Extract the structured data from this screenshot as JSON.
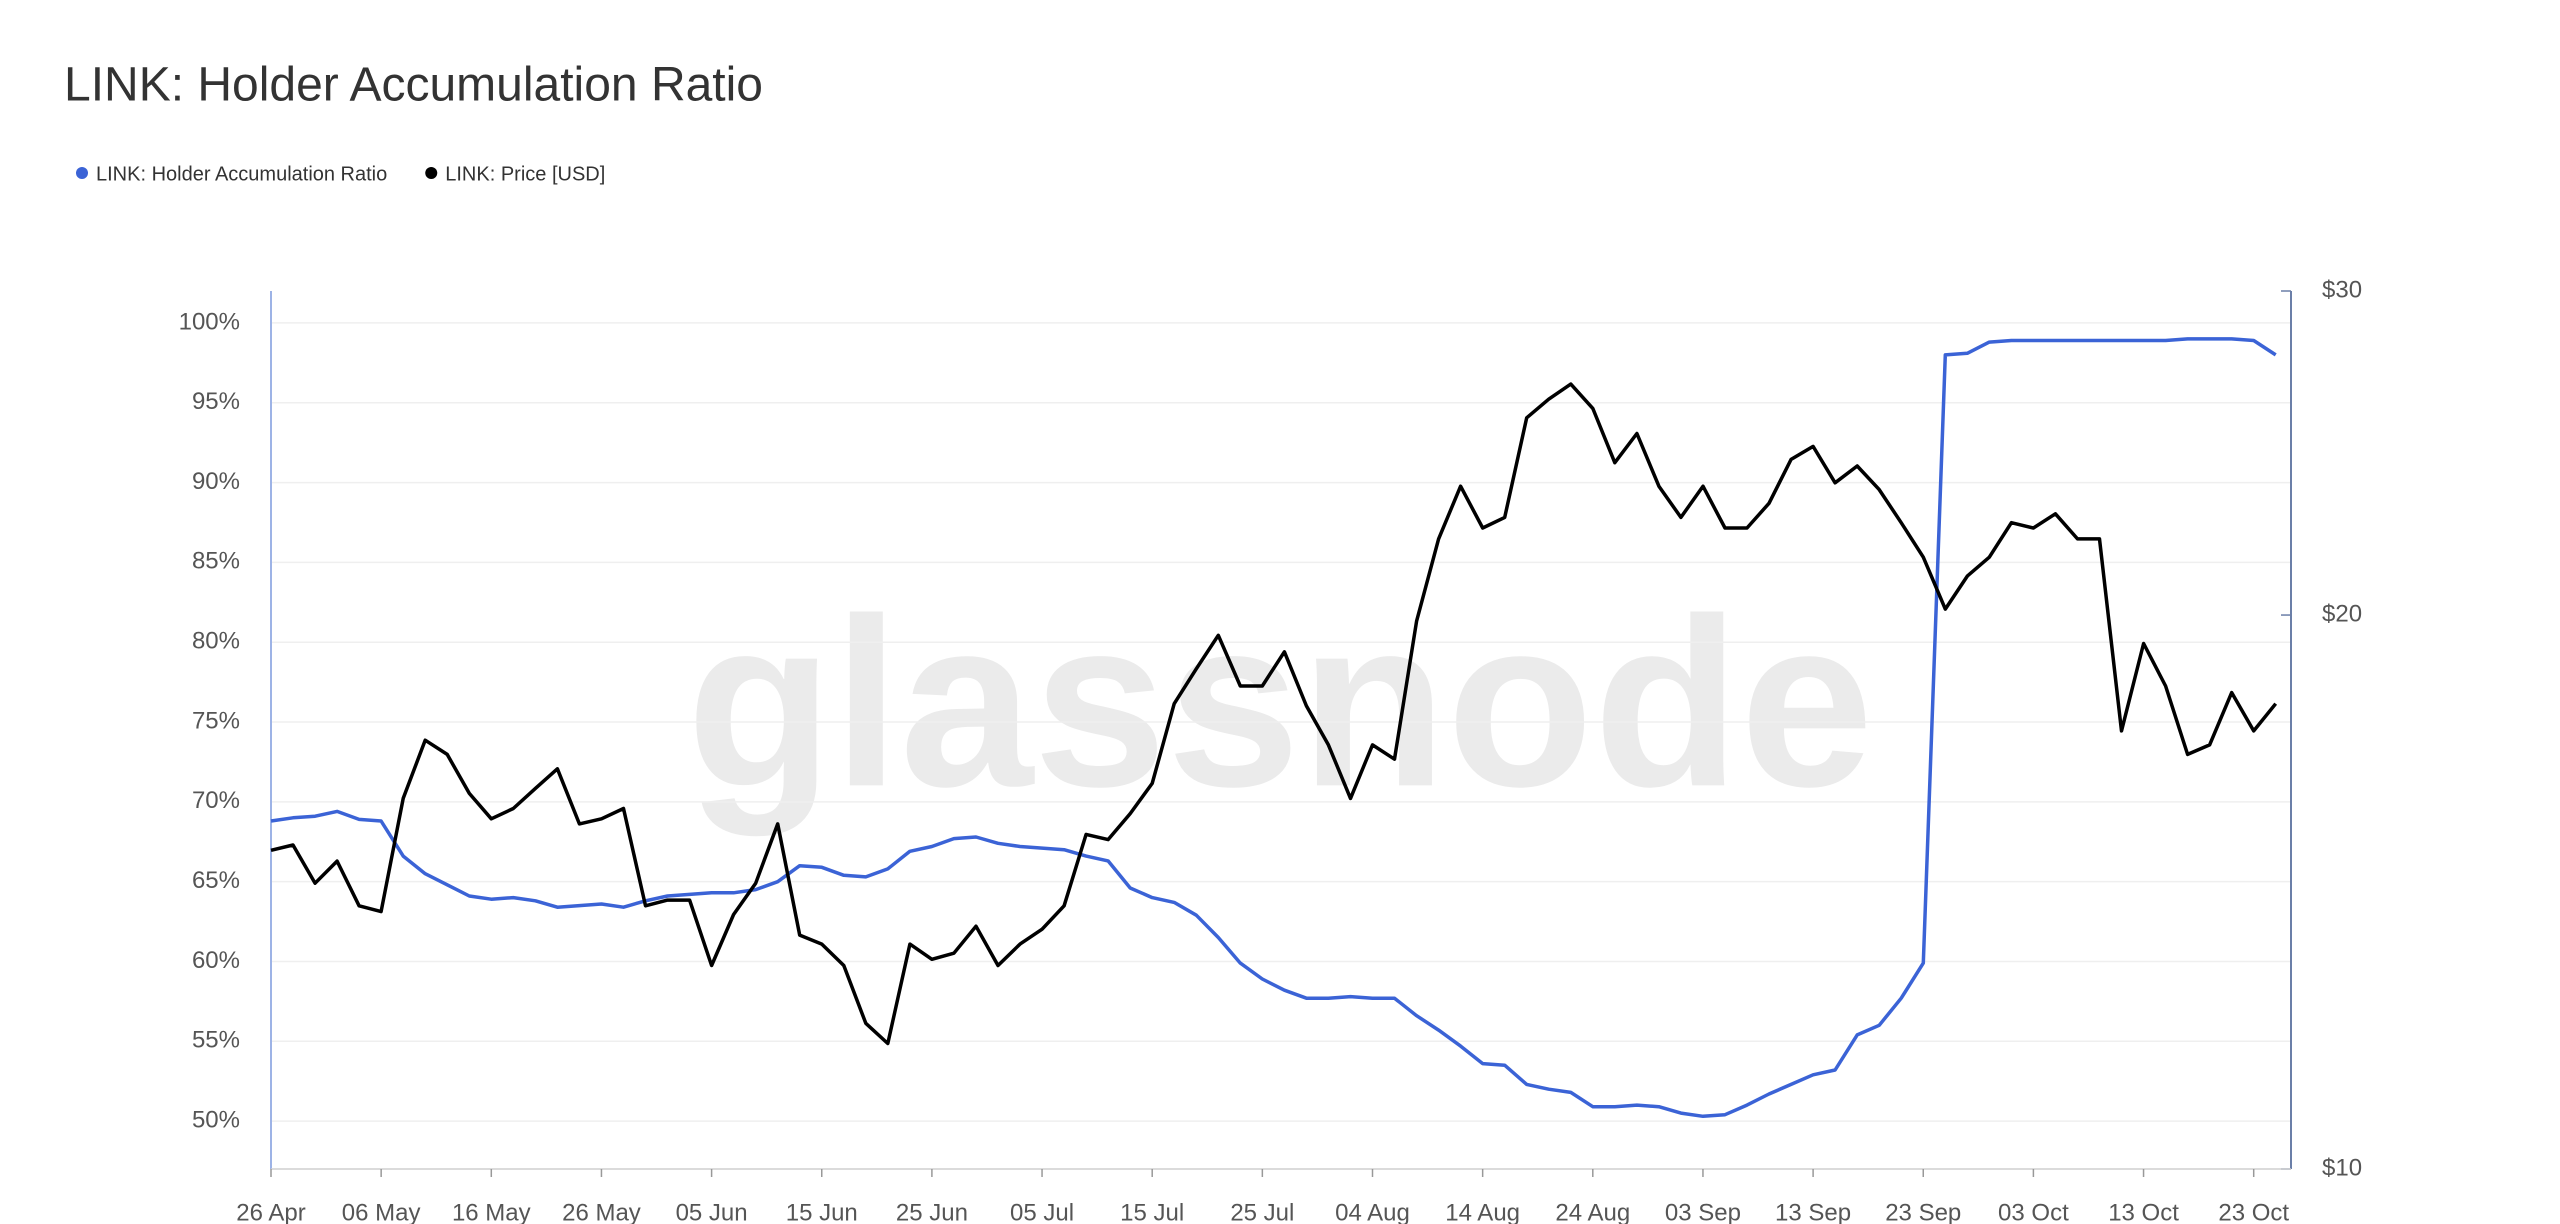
{
  "chart_data": {
    "type": "line",
    "title": "LINK: Holder Accumulation Ratio",
    "watermark": "glassnode",
    "categories": [
      "26 Apr",
      null,
      null,
      null,
      null,
      "06 May",
      null,
      null,
      null,
      null,
      "16 May",
      null,
      null,
      null,
      null,
      "26 May",
      null,
      null,
      null,
      null,
      "05 Jun",
      null,
      null,
      null,
      null,
      "15 Jun",
      null,
      null,
      null,
      null,
      "25 Jun",
      null,
      null,
      null,
      null,
      "05 Jul",
      null,
      null,
      null,
      null,
      "15 Jul",
      null,
      null,
      null,
      null,
      "25 Jul",
      null,
      null,
      null,
      null,
      "04 Aug",
      null,
      null,
      null,
      null,
      "14 Aug",
      null,
      null,
      null,
      null,
      "24 Aug",
      null,
      null,
      null,
      null,
      "03 Sep",
      null,
      null,
      null,
      null,
      "13 Sep",
      null,
      null,
      null,
      null,
      "23 Sep",
      null,
      null,
      null,
      null,
      "03 Oct",
      null,
      null,
      null,
      null,
      "13 Oct",
      null,
      null,
      null,
      null,
      "23 Oct",
      null
    ],
    "series": [
      {
        "name": "LINK: Holder Accumulation Ratio",
        "color": "#3b63d6",
        "axis": "y",
        "values": [
          68.8,
          69.0,
          69.1,
          69.4,
          68.9,
          68.8,
          66.6,
          65.5,
          64.8,
          64.1,
          63.9,
          64.0,
          63.8,
          63.4,
          63.5,
          63.6,
          63.4,
          63.8,
          64.1,
          64.2,
          64.3,
          64.3,
          64.5,
          65.0,
          66.0,
          65.9,
          65.4,
          65.3,
          65.8,
          66.9,
          67.2,
          67.7,
          67.8,
          67.4,
          67.2,
          67.1,
          67.0,
          66.6,
          66.3,
          64.6,
          64.0,
          63.7,
          62.9,
          61.5,
          59.9,
          58.9,
          58.2,
          57.7,
          57.7,
          57.8,
          57.7,
          57.7,
          56.6,
          55.7,
          54.7,
          53.6,
          53.5,
          52.3,
          52.0,
          51.8,
          50.9,
          50.9,
          51.0,
          50.9,
          50.5,
          50.3,
          50.4,
          51.0,
          51.7,
          52.3,
          52.9,
          53.2,
          55.4,
          56.0,
          57.7,
          59.9,
          98.0,
          98.1,
          98.8,
          98.9,
          98.9,
          98.9,
          98.9,
          98.9,
          98.9,
          98.9,
          98.9,
          99.0,
          99.0,
          99.0,
          98.9,
          98.0
        ]
      },
      {
        "name": "LINK: Price [USD]",
        "color": "#000000",
        "axis": "y2",
        "values": [
          14.9,
          15.0,
          14.3,
          14.7,
          13.9,
          13.8,
          15.9,
          17.1,
          16.8,
          16.0,
          15.5,
          15.7,
          16.1,
          16.5,
          15.4,
          15.5,
          15.7,
          13.9,
          14.0,
          14.0,
          12.9,
          13.75,
          14.3,
          15.4,
          13.4,
          13.25,
          12.9,
          12.0,
          11.7,
          13.25,
          13.0,
          13.1,
          13.55,
          12.9,
          13.25,
          13.5,
          13.9,
          15.2,
          15.1,
          15.6,
          16.2,
          17.9,
          18.7,
          19.5,
          18.3,
          18.3,
          19.1,
          17.85,
          17.0,
          15.9,
          17.0,
          16.7,
          19.85,
          22.0,
          23.5,
          22.3,
          22.6,
          25.6,
          26.2,
          26.7,
          25.9,
          24.2,
          25.1,
          23.5,
          22.6,
          23.5,
          22.3,
          22.3,
          23.0,
          24.3,
          24.7,
          23.6,
          24.1,
          23.4,
          22.45,
          21.5,
          20.15,
          21.0,
          21.5,
          22.45,
          22.3,
          22.7,
          22.0,
          22.0,
          17.3,
          19.3,
          18.3,
          16.8,
          17.0,
          18.15,
          17.3,
          17.9
        ]
      }
    ],
    "ylim": [
      47,
      102
    ],
    "yticks": [
      {
        "value": 50,
        "label": "50%"
      },
      {
        "value": 55,
        "label": "55%"
      },
      {
        "value": 60,
        "label": "60%"
      },
      {
        "value": 65,
        "label": "65%"
      },
      {
        "value": 70,
        "label": "70%"
      },
      {
        "value": 75,
        "label": "75%"
      },
      {
        "value": 80,
        "label": "80%"
      },
      {
        "value": 85,
        "label": "85%"
      },
      {
        "value": 90,
        "label": "90%"
      },
      {
        "value": 95,
        "label": "95%"
      },
      {
        "value": 100,
        "label": "100%"
      }
    ],
    "y2lim": [
      10,
      30
    ],
    "y2log": true,
    "y2ticks": [
      {
        "value": 10,
        "label": "$10"
      },
      {
        "value": 20,
        "label": "$20"
      },
      {
        "value": 30,
        "label": "$30"
      }
    ],
    "grid": true
  }
}
